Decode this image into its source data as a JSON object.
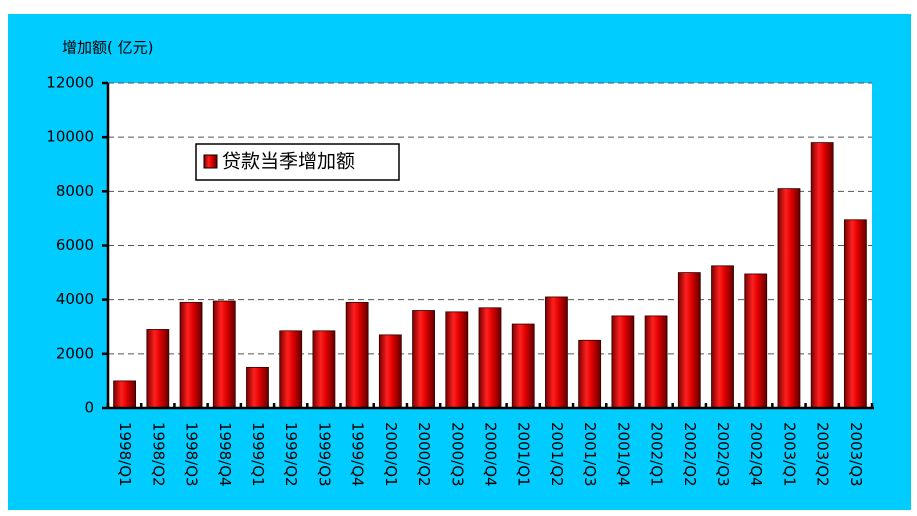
{
  "chart_data": {
    "type": "bar",
    "y_axis_label": "增加额( 亿元)",
    "categories": [
      "1998/Q1",
      "1998/Q2",
      "1998/Q3",
      "1998/Q4",
      "1999/Q1",
      "1999/Q2",
      "1999/Q3",
      "1999/Q4",
      "2000/Q1",
      "2000/Q2",
      "2000/Q3",
      "2000/Q4",
      "2001/Q1",
      "2001/Q2",
      "2001/Q3",
      "2001/Q4",
      "2002/Q1",
      "2002/Q2",
      "2002/Q3",
      "2002/Q4",
      "2003/Q1",
      "2003/Q2",
      "2003/Q3"
    ],
    "series": [
      {
        "name": "贷款当季增加额",
        "color": "#e00000",
        "values": [
          1000,
          2900,
          3900,
          3950,
          1500,
          2850,
          2850,
          3900,
          2700,
          3600,
          3550,
          3700,
          3100,
          4100,
          2500,
          3400,
          3400,
          5000,
          5250,
          4950,
          8100,
          9800,
          6950
        ]
      }
    ],
    "ylim": [
      0,
      12000
    ],
    "yticks": [
      0,
      2000,
      4000,
      6000,
      8000,
      10000,
      12000
    ],
    "grid": true
  }
}
